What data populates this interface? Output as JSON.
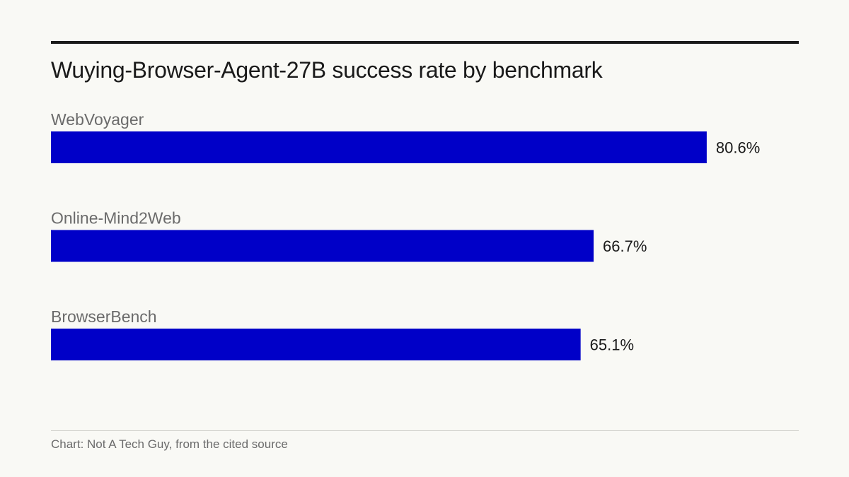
{
  "chart_data": {
    "type": "bar",
    "orientation": "horizontal",
    "title": "Wuying-Browser-Agent-27B success rate by benchmark",
    "categories": [
      "WebVoyager",
      "Online-Mind2Web",
      "BrowserBench"
    ],
    "values": [
      80.6,
      66.7,
      65.1
    ],
    "value_labels": [
      "80.6%",
      "66.7%",
      "65.1%"
    ],
    "unit": "%",
    "xlim": [
      0,
      100
    ],
    "grid": false,
    "legend": "none",
    "colors": {
      "bar": "#0000c8",
      "category_label": "#6b6b6b",
      "value_label": "#1a1a1a"
    }
  },
  "footer": {
    "source": "Chart: Not A Tech Guy, from the cited source"
  }
}
